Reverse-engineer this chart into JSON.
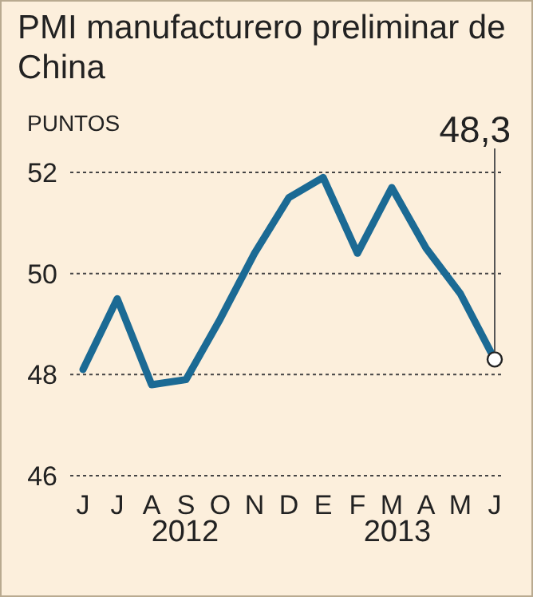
{
  "chart_data": {
    "type": "line",
    "title": "PMI manufacturero preliminar de China",
    "ylabel": "PUNTOS",
    "categories": [
      "J",
      "J",
      "A",
      "S",
      "O",
      "N",
      "D",
      "E",
      "F",
      "M",
      "A",
      "M",
      "J"
    ],
    "series": [
      {
        "color": "#1b6a94",
        "values": [
          48.1,
          49.5,
          47.8,
          47.9,
          49.1,
          50.4,
          51.5,
          51.9,
          50.4,
          51.7,
          50.5,
          49.6,
          48.3
        ],
        "value_labels": [
          null,
          null,
          null,
          null,
          null,
          null,
          null,
          null,
          null,
          null,
          null,
          null,
          "48,3"
        ]
      }
    ],
    "ylim": [
      46,
      52
    ],
    "yticks": [
      46,
      48,
      50,
      52
    ],
    "grid": "y",
    "annotations": [
      "2012",
      "2013"
    ]
  }
}
